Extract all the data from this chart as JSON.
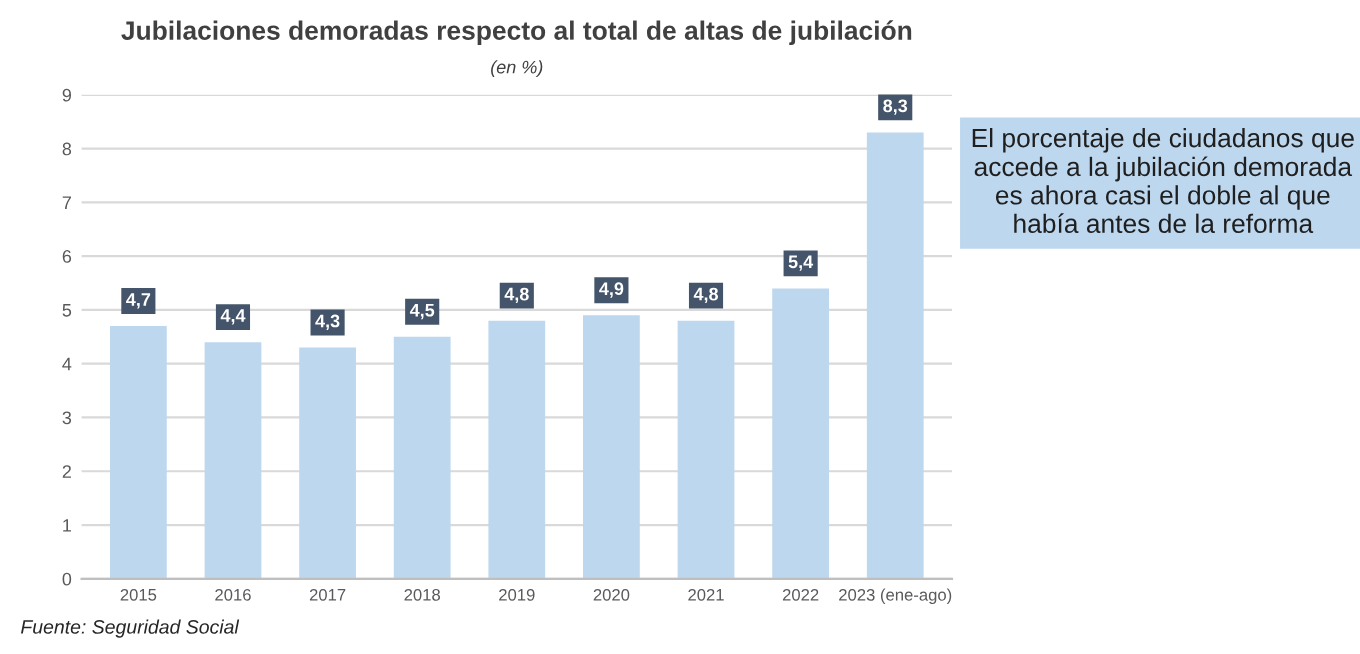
{
  "chart_data": {
    "type": "bar",
    "title": "Jubilaciones demoradas respecto al total de altas de jubilación",
    "subtitle": "(en %)",
    "categories": [
      "2015",
      "2016",
      "2017",
      "2018",
      "2019",
      "2020",
      "2021",
      "2022",
      "2023 (ene-ago)"
    ],
    "values": [
      4.7,
      4.4,
      4.3,
      4.5,
      4.8,
      4.9,
      4.8,
      5.4,
      8.3
    ],
    "value_labels": [
      "4,7",
      "4,4",
      "4,3",
      "4,5",
      "4,8",
      "4,9",
      "4,8",
      "5,4",
      "8,3"
    ],
    "color": "#bdd7ee",
    "ylim": [
      0,
      9
    ],
    "yticks": [
      0,
      1,
      2,
      3,
      4,
      5,
      6,
      7,
      8,
      9
    ],
    "grid": "y",
    "annotations": [
      "El porcentaje de ciudadanos que accede a la jubilación demorada es ahora casi el doble al que había antes de la reforma",
      "Fuente: Seguridad Social"
    ]
  }
}
